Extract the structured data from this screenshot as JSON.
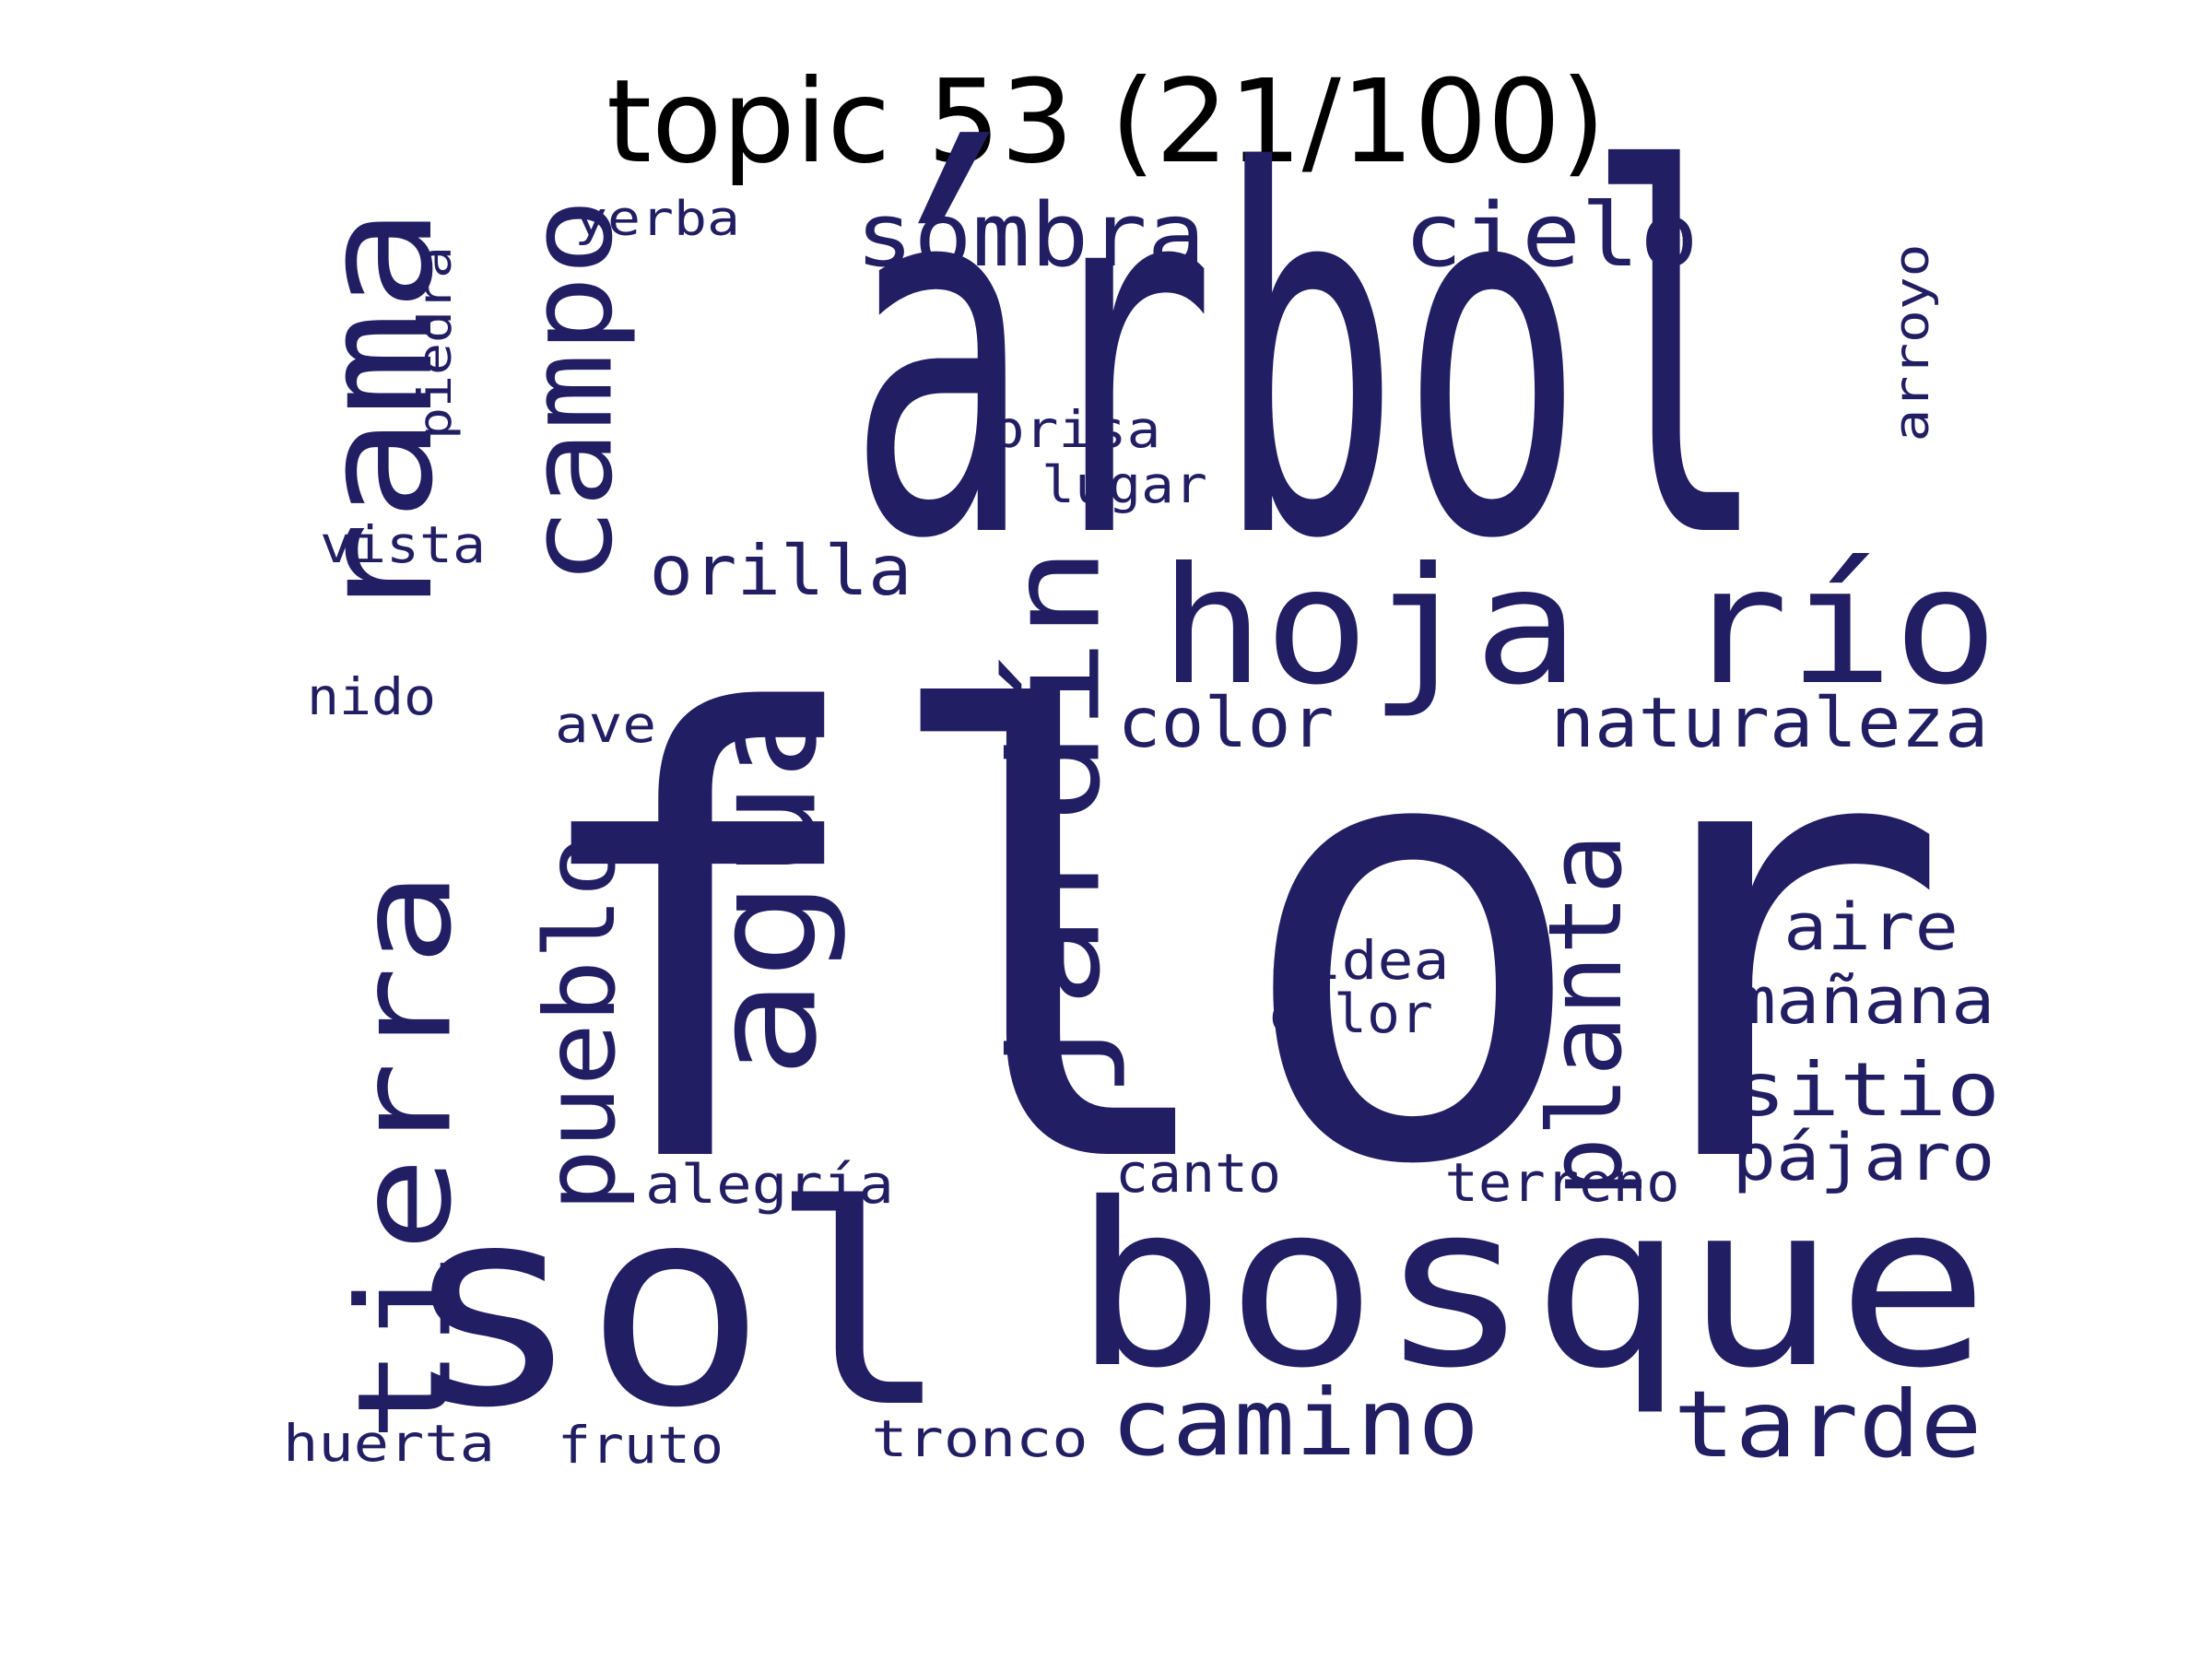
{
  "title": "topic 53 (21/100)",
  "color": "#221e63",
  "words": [
    {
      "id": "flor",
      "text": "flor"
    },
    {
      "id": "arbol",
      "text": "árbol"
    },
    {
      "id": "sol",
      "text": "sol"
    },
    {
      "id": "bosque",
      "text": "bosque"
    },
    {
      "id": "hoja-rio",
      "text": "hoja río"
    },
    {
      "id": "rama",
      "text": "rama"
    },
    {
      "id": "tierra",
      "text": "tierra"
    },
    {
      "id": "agua",
      "text": "agua"
    },
    {
      "id": "jardin",
      "text": "jardín"
    },
    {
      "id": "campo",
      "text": "campo"
    },
    {
      "id": "sombra",
      "text": "sombra"
    },
    {
      "id": "cielo",
      "text": "cielo"
    },
    {
      "id": "planta",
      "text": "planta"
    },
    {
      "id": "pueblo",
      "text": "pueblo"
    },
    {
      "id": "camino",
      "text": "camino"
    },
    {
      "id": "tarde",
      "text": "tarde"
    },
    {
      "id": "naturaleza",
      "text": "naturaleza"
    },
    {
      "id": "sitio",
      "text": "sitio"
    },
    {
      "id": "orilla",
      "text": "orilla"
    },
    {
      "id": "color",
      "text": "color"
    },
    {
      "id": "manana",
      "text": "mañana"
    },
    {
      "id": "aire",
      "text": "aire"
    },
    {
      "id": "pajaro",
      "text": "pájaro"
    },
    {
      "id": "aldea",
      "text": "aldea"
    },
    {
      "id": "calor",
      "text": "calor"
    },
    {
      "id": "alegria",
      "text": "alegría"
    },
    {
      "id": "canto",
      "text": "canto"
    },
    {
      "id": "terreno",
      "text": "terreno"
    },
    {
      "id": "brisa",
      "text": "brisa"
    },
    {
      "id": "lugar",
      "text": "lugar"
    },
    {
      "id": "yerba",
      "text": "yerba"
    },
    {
      "id": "piedra",
      "text": "piedra"
    },
    {
      "id": "arroyo",
      "text": "arroyo"
    },
    {
      "id": "vista",
      "text": "vista"
    },
    {
      "id": "nido",
      "text": "nido"
    },
    {
      "id": "ave",
      "text": "ave"
    },
    {
      "id": "huerta",
      "text": "huerta"
    },
    {
      "id": "fruto",
      "text": "fruto"
    },
    {
      "id": "tronco",
      "text": "tronco"
    }
  ]
}
